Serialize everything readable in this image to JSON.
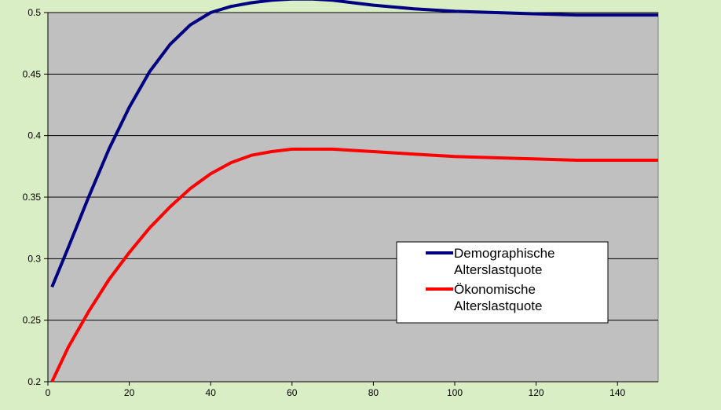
{
  "chart_data": {
    "type": "line",
    "title": "",
    "xlabel": "",
    "ylabel": "",
    "xlim": [
      0,
      150
    ],
    "ylim": [
      0.2,
      0.5
    ],
    "x_ticks": [
      0,
      20,
      40,
      60,
      80,
      100,
      120,
      140
    ],
    "y_ticks": [
      0.2,
      0.25,
      0.3,
      0.35,
      0.4,
      0.45,
      0.5
    ],
    "x_tick_labels": [
      "0",
      "20",
      "40",
      "60",
      "80",
      "100",
      "120",
      "140"
    ],
    "y_tick_labels": [
      "0.2",
      "0.25",
      "0.3",
      "0.35",
      "0.4",
      "0.45",
      "0.5"
    ],
    "grid": "horizontal",
    "plot_background": "#c0c0c0",
    "legend": {
      "placement": "center-right"
    },
    "series": [
      {
        "name": "Demographische Alterslastquote",
        "legend_lines": [
          "Demographische",
          "Alterslastquote"
        ],
        "color": "#000080",
        "x": [
          1,
          5,
          10,
          15,
          20,
          25,
          30,
          35,
          40,
          45,
          50,
          55,
          60,
          65,
          70,
          75,
          80,
          90,
          100,
          110,
          120,
          130,
          140,
          150
        ],
        "y": [
          0.277,
          0.309,
          0.35,
          0.389,
          0.423,
          0.452,
          0.474,
          0.49,
          0.5,
          0.505,
          0.508,
          0.51,
          0.511,
          0.511,
          0.51,
          0.508,
          0.506,
          0.503,
          0.501,
          0.5,
          0.499,
          0.498,
          0.498,
          0.498
        ]
      },
      {
        "name": "Ökonomische Alterslastquote",
        "legend_lines": [
          "Ökonomische",
          "Alterslastquote"
        ],
        "color": "#ff0000",
        "x": [
          1,
          5,
          10,
          15,
          20,
          25,
          30,
          35,
          40,
          45,
          50,
          55,
          60,
          65,
          70,
          75,
          80,
          90,
          100,
          110,
          120,
          130,
          140,
          150
        ],
        "y": [
          0.2,
          0.228,
          0.257,
          0.283,
          0.305,
          0.325,
          0.342,
          0.357,
          0.369,
          0.378,
          0.384,
          0.387,
          0.389,
          0.389,
          0.389,
          0.388,
          0.387,
          0.385,
          0.383,
          0.382,
          0.381,
          0.38,
          0.38,
          0.38
        ]
      }
    ]
  }
}
